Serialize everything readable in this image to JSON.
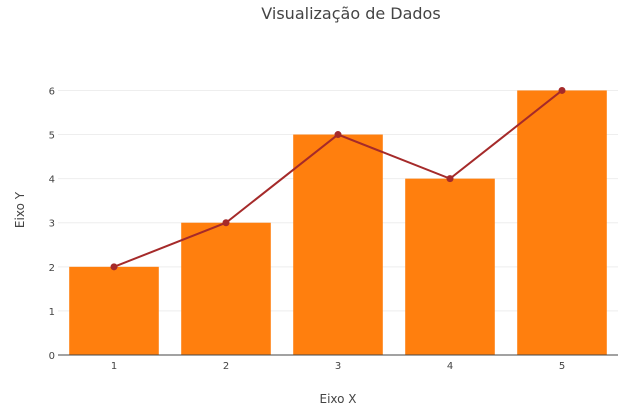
{
  "chart_data": {
    "type": "bar",
    "title": "Visualização de Dados",
    "xlabel": "Eixo X",
    "ylabel": "Eixo Y",
    "categories": [
      1,
      2,
      3,
      4,
      5
    ],
    "ylim": [
      0,
      6.6
    ],
    "yticks": [
      0,
      1,
      2,
      3,
      4,
      5,
      6
    ],
    "grid": true,
    "legend": "none",
    "series": [
      {
        "type": "bar",
        "values": [
          2,
          3,
          5,
          4,
          6
        ],
        "color": "#ff7f0e"
      },
      {
        "type": "line",
        "values": [
          2,
          3,
          5,
          4,
          6
        ],
        "color": "#a52a2a",
        "markers": true
      }
    ]
  }
}
